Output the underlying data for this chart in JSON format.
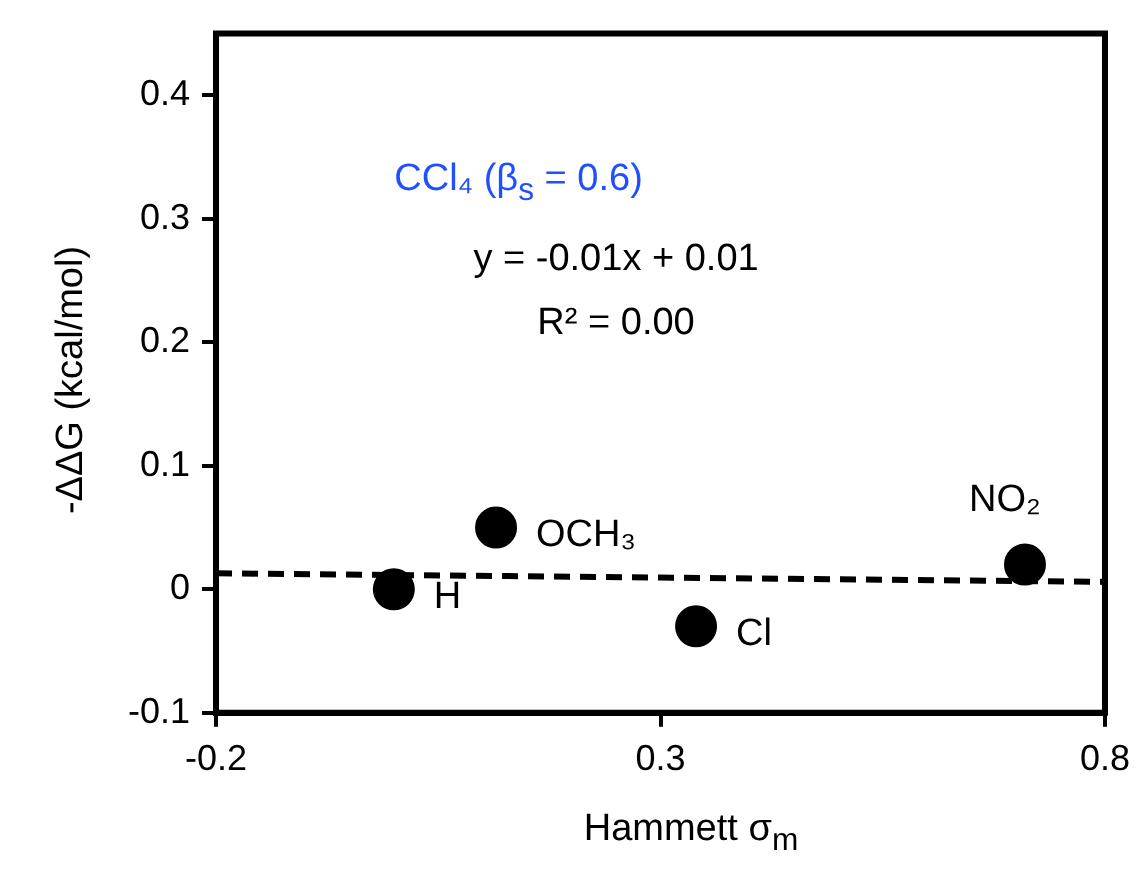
{
  "chart_data": {
    "type": "scatter",
    "subtitle": "CCl₄ (β$_{s}$ = 0.6)",
    "xlabel": "Hammett  σ$_{m}$",
    "ylabel": "-ΔΔG (kcal/mol)",
    "series": [
      {
        "type": "scatter",
        "color": "#000000",
        "x": [
          0,
          0.115,
          0.34,
          0.71
        ],
        "values": [
          0,
          0.05,
          -0.03,
          0.02
        ],
        "value_labels": [
          "H",
          "OCH₃",
          "Cl",
          "NO₂"
        ]
      },
      {
        "type": "line",
        "color": "#000000",
        "line_style": "dashed",
        "marker": "none",
        "x": [
          -0.2,
          0.8
        ],
        "values": [
          0.013,
          0.006
        ]
      }
    ],
    "annotations": [
      "y = -0.01x + 0.01",
      "R² = 0.00"
    ],
    "xlim": [
      -0.2,
      0.8
    ],
    "xticks": [
      -0.2,
      0.3,
      0.8
    ],
    "ylim": [
      -0.1,
      0.45
    ],
    "yticks": [
      -0.1,
      0,
      0.1,
      0.2,
      0.3,
      0.4
    ],
    "marker": "circle",
    "grid": false,
    "legend": false
  }
}
